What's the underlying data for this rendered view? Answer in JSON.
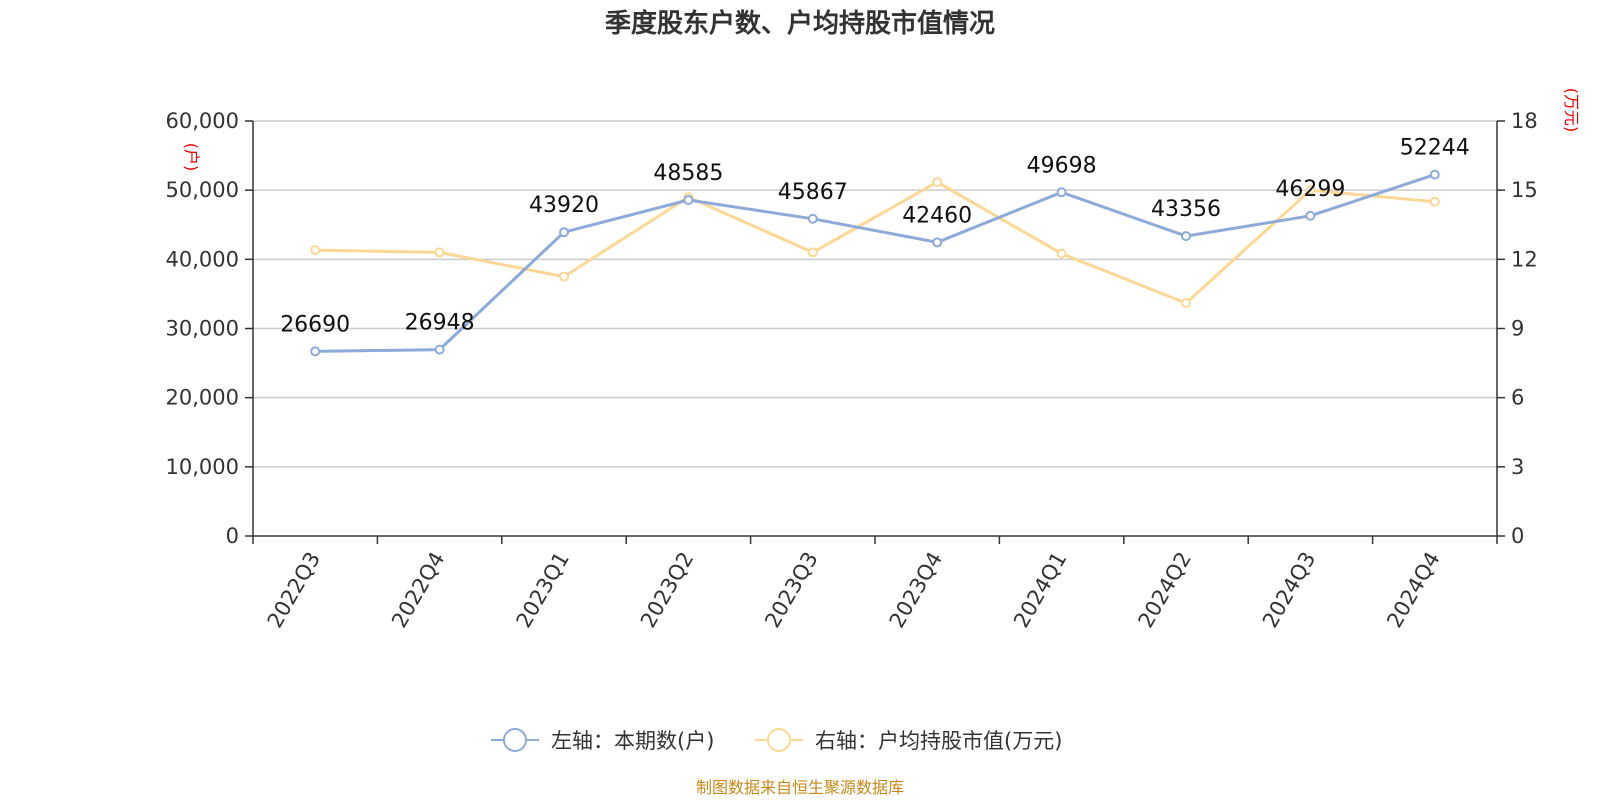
{
  "chart_data": {
    "type": "line",
    "title": "季度股东户数、户均持股市值情况",
    "categories": [
      "2022Q3",
      "2022Q4",
      "2023Q1",
      "2023Q2",
      "2023Q3",
      "2023Q4",
      "2024Q1",
      "2024Q2",
      "2024Q3",
      "2024Q4"
    ],
    "y_left": {
      "unit": "(户)",
      "ylim": [
        0,
        60000
      ],
      "ticks": [
        "0",
        "10,000",
        "20,000",
        "30,000",
        "40,000",
        "50,000",
        "60,000"
      ]
    },
    "y_right": {
      "unit": "(万元)",
      "ylim": [
        0,
        18
      ],
      "ticks": [
        "0",
        "3",
        "6",
        "9",
        "12",
        "15",
        "18"
      ]
    },
    "grid": true,
    "legend_position": "bottom",
    "series": [
      {
        "name": "左轴：本期数(户)",
        "axis": "left",
        "color": "#8eaad8",
        "values": [
          26690,
          26948,
          43920,
          48585,
          45867,
          42460,
          49698,
          43356,
          46299,
          52244
        ],
        "labels": [
          "26690",
          "26948",
          "43920",
          "48585",
          "45867",
          "42460",
          "49698",
          "43356",
          "46299",
          "52244"
        ]
      },
      {
        "name": "右轴：户均持股市值(万元)",
        "axis": "right",
        "color": "#fdd795",
        "values": [
          12.4,
          12.3,
          11.25,
          14.7,
          12.3,
          15.35,
          12.25,
          10.1,
          15.0,
          14.5
        ]
      }
    ],
    "source": "制图数据来自恒生聚源数据库"
  }
}
